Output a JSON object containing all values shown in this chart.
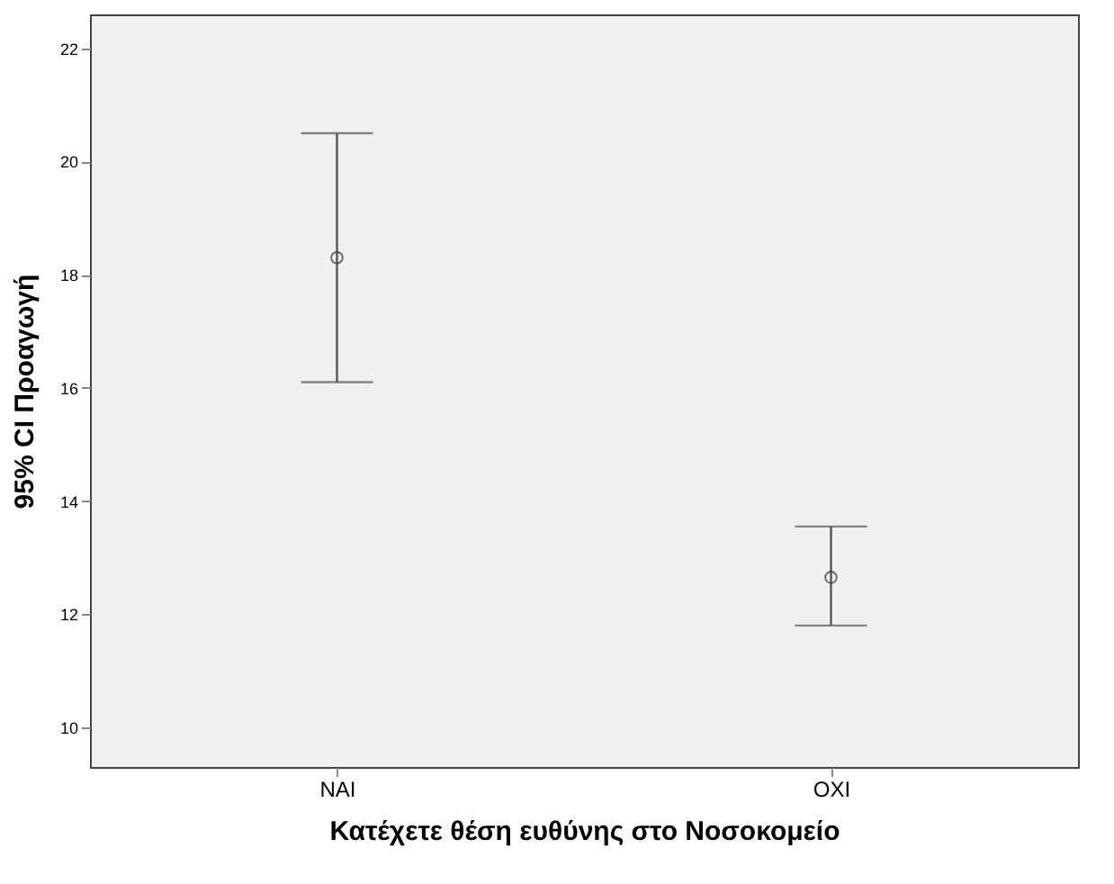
{
  "chart_data": {
    "type": "scatter",
    "xlabel": "Κατέχετε θέση ευθύνης στο Νοσοκομείο",
    "ylabel": "95% CI Προαγωγή",
    "categories": [
      "NAI",
      "OXI"
    ],
    "series": [
      {
        "color": "#333333",
        "values": [
          18.3,
          12.65
        ],
        "errors": [
          [
            16.1,
            20.5
          ],
          [
            11.8,
            13.55
          ]
        ]
      }
    ],
    "ylim": [
      9.3,
      22.6
    ],
    "yticks": [
      10,
      12,
      14,
      16,
      18,
      20,
      22
    ],
    "marker": "circle",
    "grid": false
  }
}
